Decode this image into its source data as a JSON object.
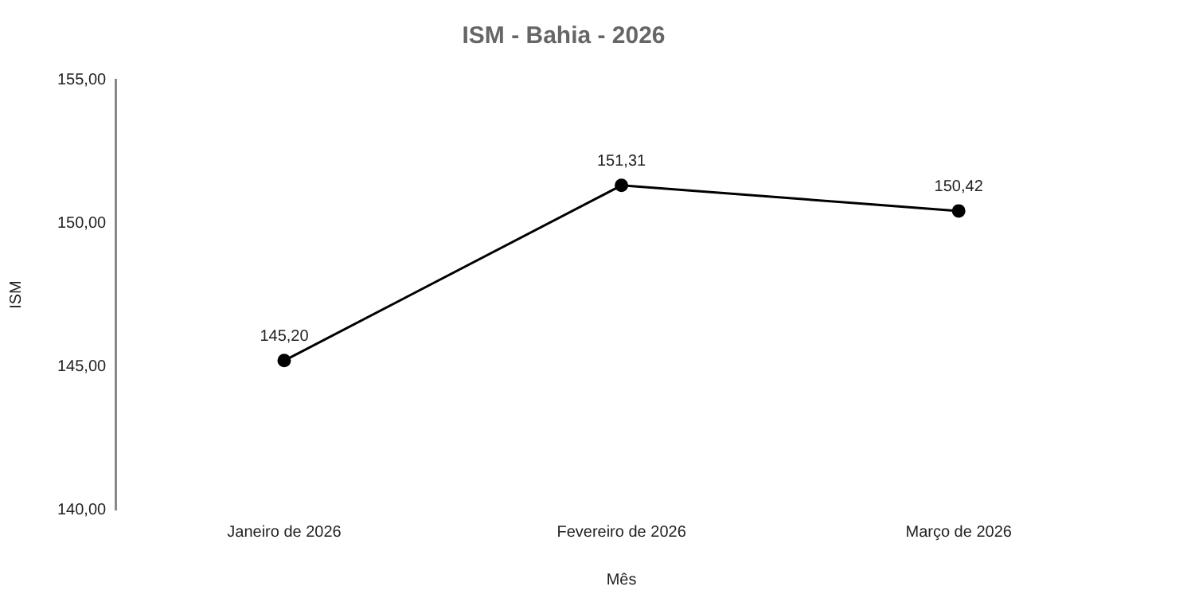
{
  "chart_data": {
    "type": "line",
    "title": "ISM - Bahia - 2026",
    "xlabel": "Mês",
    "ylabel": "ISM",
    "categories": [
      "Janeiro de 2026",
      "Fevereiro de 2026",
      "Março de 2026"
    ],
    "series": [
      {
        "color": "#000000",
        "values": [
          145.2,
          151.31,
          150.42
        ],
        "value_labels": [
          "145,20",
          "151,31",
          "150,42"
        ]
      }
    ],
    "ylim": [
      140,
      155
    ],
    "yticks": [
      {
        "value": 140,
        "label": "140,00"
      },
      {
        "value": 145,
        "label": "145,00"
      },
      {
        "value": 150,
        "label": "150,00"
      },
      {
        "value": 155,
        "label": "155,00"
      }
    ],
    "grid": false,
    "legend": false,
    "marker": "circle",
    "line_style": "solid"
  }
}
